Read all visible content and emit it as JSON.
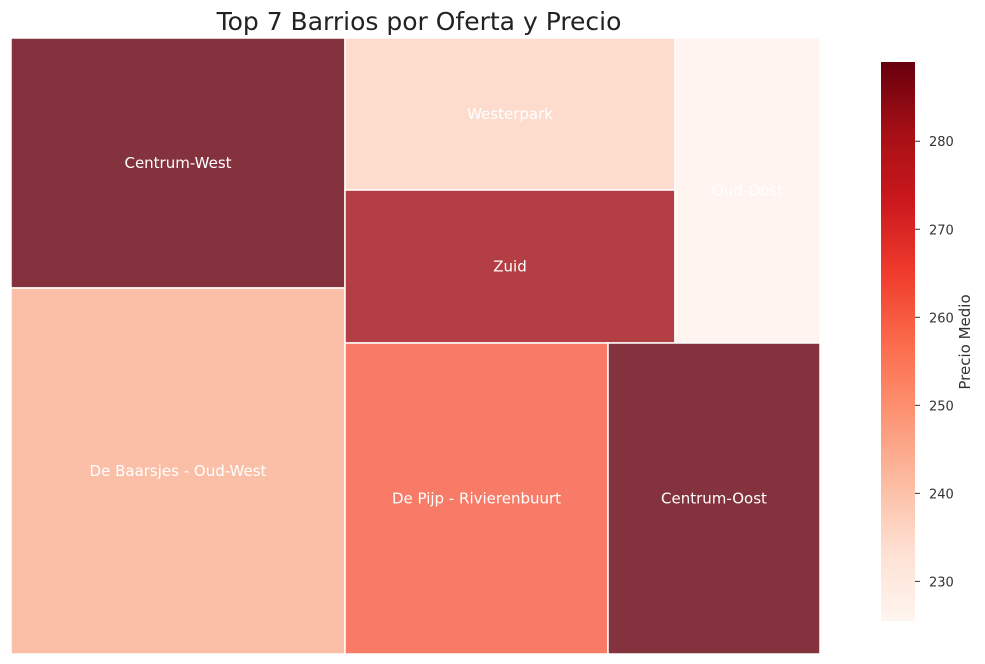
{
  "chart_data": {
    "type": "treemap",
    "title": "Top 7 Barrios por Oferta y Precio",
    "colorbar": {
      "label": "Precio Medio",
      "range": [
        225.5,
        289
      ],
      "ticks": [
        230,
        240,
        250,
        260,
        270,
        280
      ],
      "colormap": "Reds"
    },
    "cells": [
      {
        "name": "Centrum-West",
        "color": "#84323D"
      },
      {
        "name": "De Baarsjes - Oud-West",
        "color": "#FBBEA6"
      },
      {
        "name": "Westerpark",
        "color": "#FDDCCE"
      },
      {
        "name": "Zuid",
        "color": "#B33E44"
      },
      {
        "name": "Oud-Oost",
        "color": "#FFF4EF"
      },
      {
        "name": "De Pijp - Rivierenbuurt",
        "color": "#F77B66"
      },
      {
        "name": "Centrum-Oost",
        "color": "#84323D"
      }
    ]
  }
}
